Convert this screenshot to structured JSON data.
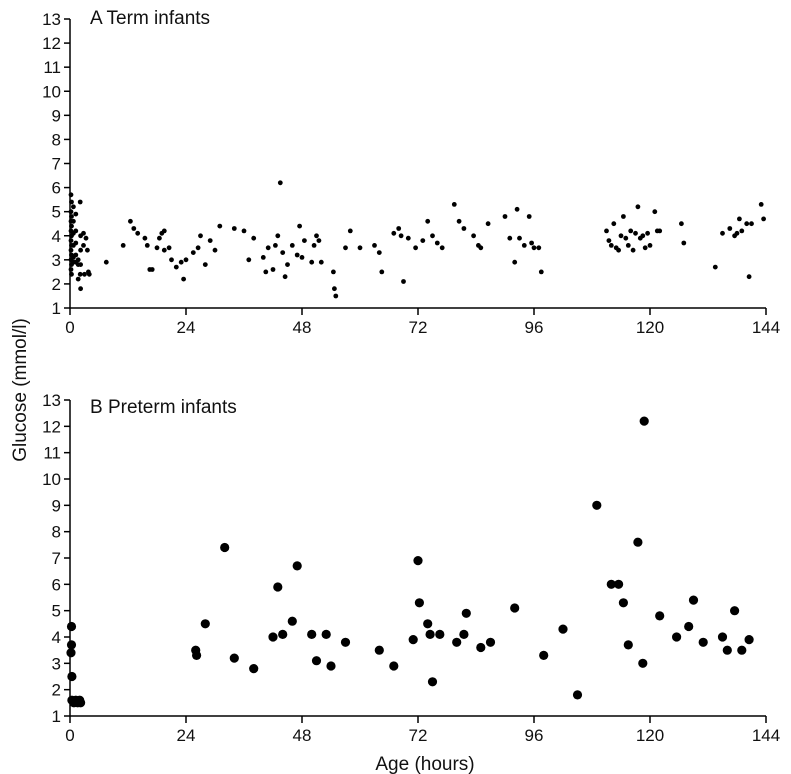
{
  "chart_data": [
    {
      "type": "scatter",
      "title": "A  Term infants",
      "xlabel": "Age (hours)",
      "ylabel": "Glucose (mmol/l)",
      "xlim": [
        0,
        144
      ],
      "ylim": [
        1,
        13
      ],
      "xticks": [
        0,
        24,
        48,
        72,
        96,
        120,
        144
      ],
      "yticks": [
        1,
        2,
        3,
        4,
        5,
        6,
        7,
        8,
        9,
        10,
        11,
        12,
        13
      ],
      "grid": false,
      "points": [
        [
          0.2,
          5.7
        ],
        [
          0.3,
          5.4
        ],
        [
          0.2,
          5.0
        ],
        [
          0.3,
          4.8
        ],
        [
          0.2,
          4.6
        ],
        [
          0.3,
          4.4
        ],
        [
          0.2,
          4.2
        ],
        [
          0.3,
          4.0
        ],
        [
          0.2,
          3.8
        ],
        [
          0.3,
          3.6
        ],
        [
          0.2,
          3.4
        ],
        [
          0.3,
          3.2
        ],
        [
          0.2,
          3.0
        ],
        [
          0.3,
          2.8
        ],
        [
          0.2,
          2.6
        ],
        [
          0.3,
          2.4
        ],
        [
          0.7,
          5.2
        ],
        [
          0.7,
          4.6
        ],
        [
          0.7,
          4.1
        ],
        [
          0.7,
          3.6
        ],
        [
          0.7,
          3.1
        ],
        [
          0.7,
          2.9
        ],
        [
          1.2,
          4.9
        ],
        [
          1.2,
          4.2
        ],
        [
          1.2,
          3.7
        ],
        [
          1.2,
          3.2
        ],
        [
          1.2,
          2.9
        ],
        [
          1.7,
          3.0
        ],
        [
          1.7,
          2.8
        ],
        [
          1.7,
          2.2
        ],
        [
          2.1,
          5.4
        ],
        [
          2.2,
          4.0
        ],
        [
          2.2,
          3.4
        ],
        [
          2.2,
          2.8
        ],
        [
          2.1,
          2.4
        ],
        [
          2.2,
          1.8
        ],
        [
          2.8,
          4.1
        ],
        [
          2.8,
          3.6
        ],
        [
          3.0,
          2.4
        ],
        [
          3.3,
          3.9
        ],
        [
          3.6,
          3.4
        ],
        [
          3.8,
          2.5
        ],
        [
          4.0,
          2.4
        ],
        [
          7.5,
          2.9
        ],
        [
          11.0,
          3.6
        ],
        [
          12.5,
          4.6
        ],
        [
          13.2,
          4.3
        ],
        [
          14.0,
          4.1
        ],
        [
          15.5,
          3.9
        ],
        [
          16.0,
          3.6
        ],
        [
          16.5,
          2.6
        ],
        [
          17.0,
          2.6
        ],
        [
          18.0,
          3.5
        ],
        [
          18.5,
          3.9
        ],
        [
          19.0,
          4.1
        ],
        [
          19.5,
          4.2
        ],
        [
          19.5,
          3.4
        ],
        [
          20.5,
          3.5
        ],
        [
          21.0,
          3.0
        ],
        [
          22.0,
          2.7
        ],
        [
          23.0,
          2.9
        ],
        [
          23.5,
          2.2
        ],
        [
          24.0,
          3.0
        ],
        [
          25.5,
          3.3
        ],
        [
          26.5,
          3.5
        ],
        [
          27.0,
          4.0
        ],
        [
          28.0,
          2.8
        ],
        [
          29.0,
          3.8
        ],
        [
          30.0,
          3.4
        ],
        [
          31.0,
          4.4
        ],
        [
          34.0,
          4.3
        ],
        [
          36.0,
          4.2
        ],
        [
          37.0,
          3.0
        ],
        [
          38.0,
          3.9
        ],
        [
          40.0,
          3.1
        ],
        [
          40.5,
          2.5
        ],
        [
          41.0,
          3.5
        ],
        [
          42.0,
          2.6
        ],
        [
          42.5,
          3.6
        ],
        [
          43.0,
          4.0
        ],
        [
          43.5,
          6.2
        ],
        [
          44.0,
          3.3
        ],
        [
          44.5,
          2.3
        ],
        [
          45.0,
          2.8
        ],
        [
          46.0,
          3.6
        ],
        [
          47.0,
          3.2
        ],
        [
          47.5,
          4.4
        ],
        [
          48.0,
          3.1
        ],
        [
          48.5,
          3.8
        ],
        [
          50.0,
          2.9
        ],
        [
          50.5,
          3.6
        ],
        [
          51.0,
          4.0
        ],
        [
          51.5,
          3.8
        ],
        [
          52.0,
          2.9
        ],
        [
          54.5,
          2.5
        ],
        [
          54.7,
          1.8
        ],
        [
          55.0,
          1.5
        ],
        [
          57.0,
          3.5
        ],
        [
          58.0,
          4.2
        ],
        [
          60.0,
          3.5
        ],
        [
          63.0,
          3.6
        ],
        [
          64.0,
          3.3
        ],
        [
          64.5,
          2.5
        ],
        [
          67.0,
          4.1
        ],
        [
          68.0,
          4.3
        ],
        [
          68.5,
          4.0
        ],
        [
          69.0,
          2.1
        ],
        [
          70.0,
          3.9
        ],
        [
          71.5,
          3.5
        ],
        [
          73.0,
          3.8
        ],
        [
          74.0,
          4.6
        ],
        [
          75.0,
          4.0
        ],
        [
          76.0,
          3.7
        ],
        [
          77.0,
          3.5
        ],
        [
          79.5,
          5.3
        ],
        [
          80.5,
          4.6
        ],
        [
          81.5,
          4.3
        ],
        [
          83.5,
          4.0
        ],
        [
          84.5,
          3.6
        ],
        [
          85.0,
          3.5
        ],
        [
          86.5,
          4.5
        ],
        [
          90.0,
          4.8
        ],
        [
          91.0,
          3.9
        ],
        [
          92.0,
          2.9
        ],
        [
          92.5,
          5.1
        ],
        [
          93.0,
          3.9
        ],
        [
          94.0,
          3.6
        ],
        [
          95.0,
          4.8
        ],
        [
          95.5,
          3.7
        ],
        [
          96.0,
          3.5
        ],
        [
          97.0,
          3.5
        ],
        [
          97.5,
          2.5
        ],
        [
          111.0,
          4.2
        ],
        [
          111.5,
          3.8
        ],
        [
          112.0,
          3.6
        ],
        [
          112.5,
          4.5
        ],
        [
          113.0,
          3.5
        ],
        [
          113.5,
          3.4
        ],
        [
          114.0,
          4.0
        ],
        [
          114.5,
          4.8
        ],
        [
          115.0,
          3.9
        ],
        [
          115.5,
          3.6
        ],
        [
          116.0,
          4.2
        ],
        [
          116.5,
          3.4
        ],
        [
          117.0,
          4.1
        ],
        [
          117.5,
          5.2
        ],
        [
          118.0,
          3.9
        ],
        [
          118.5,
          4.0
        ],
        [
          119.0,
          3.5
        ],
        [
          119.5,
          4.1
        ],
        [
          120.0,
          3.6
        ],
        [
          121.0,
          5.0
        ],
        [
          121.5,
          4.2
        ],
        [
          122.0,
          4.2
        ],
        [
          126.5,
          4.5
        ],
        [
          127.0,
          3.7
        ],
        [
          133.5,
          2.7
        ],
        [
          135.0,
          4.1
        ],
        [
          136.5,
          4.3
        ],
        [
          137.5,
          4.0
        ],
        [
          138.0,
          4.1
        ],
        [
          138.5,
          4.7
        ],
        [
          139.0,
          4.2
        ],
        [
          140.0,
          4.5
        ],
        [
          140.5,
          2.3
        ],
        [
          141.0,
          4.5
        ],
        [
          143.0,
          5.3
        ],
        [
          143.5,
          4.7
        ]
      ]
    },
    {
      "type": "scatter",
      "title": "B  Preterm infants",
      "xlabel": "Age (hours)",
      "ylabel": "Glucose (mmol/l)",
      "xlim": [
        0,
        144
      ],
      "ylim": [
        1,
        13
      ],
      "xticks": [
        0,
        24,
        48,
        72,
        96,
        120,
        144
      ],
      "yticks": [
        1,
        2,
        3,
        4,
        5,
        6,
        7,
        8,
        9,
        10,
        11,
        12,
        13
      ],
      "grid": false,
      "points": [
        [
          0.3,
          4.4
        ],
        [
          0.3,
          3.7
        ],
        [
          0.2,
          3.4
        ],
        [
          0.4,
          2.5
        ],
        [
          0.4,
          1.6
        ],
        [
          0.8,
          1.5
        ],
        [
          1.2,
          1.6
        ],
        [
          1.6,
          1.5
        ],
        [
          2.0,
          1.6
        ],
        [
          2.2,
          1.5
        ],
        [
          26.0,
          3.5
        ],
        [
          26.2,
          3.3
        ],
        [
          28.0,
          4.5
        ],
        [
          32.0,
          7.4
        ],
        [
          34.0,
          3.2
        ],
        [
          38.0,
          2.8
        ],
        [
          42.0,
          4.0
        ],
        [
          43.0,
          5.9
        ],
        [
          44.0,
          4.1
        ],
        [
          46.0,
          4.6
        ],
        [
          47.0,
          6.7
        ],
        [
          50.0,
          4.1
        ],
        [
          51.0,
          3.1
        ],
        [
          53.0,
          4.1
        ],
        [
          54.0,
          2.9
        ],
        [
          57.0,
          3.8
        ],
        [
          64.0,
          3.5
        ],
        [
          67.0,
          2.9
        ],
        [
          71.0,
          3.9
        ],
        [
          72.0,
          6.9
        ],
        [
          72.3,
          5.3
        ],
        [
          74.0,
          4.5
        ],
        [
          74.5,
          4.1
        ],
        [
          75.0,
          2.3
        ],
        [
          76.5,
          4.1
        ],
        [
          80.0,
          3.8
        ],
        [
          81.5,
          4.1
        ],
        [
          82.0,
          4.9
        ],
        [
          85.0,
          3.6
        ],
        [
          87.0,
          3.8
        ],
        [
          92.0,
          5.1
        ],
        [
          98.0,
          3.3
        ],
        [
          102.0,
          4.3
        ],
        [
          105.0,
          1.8
        ],
        [
          109.0,
          9.0
        ],
        [
          112.0,
          6.0
        ],
        [
          113.5,
          6.0
        ],
        [
          114.5,
          5.3
        ],
        [
          115.5,
          3.7
        ],
        [
          117.5,
          7.6
        ],
        [
          118.5,
          3.0
        ],
        [
          118.8,
          12.2
        ],
        [
          122.0,
          4.8
        ],
        [
          125.5,
          4.0
        ],
        [
          128.0,
          4.4
        ],
        [
          129.0,
          5.4
        ],
        [
          131.0,
          3.8
        ],
        [
          135.0,
          4.0
        ],
        [
          136.0,
          3.5
        ],
        [
          137.5,
          5.0
        ],
        [
          139.0,
          3.5
        ],
        [
          140.5,
          3.9
        ]
      ]
    }
  ]
}
